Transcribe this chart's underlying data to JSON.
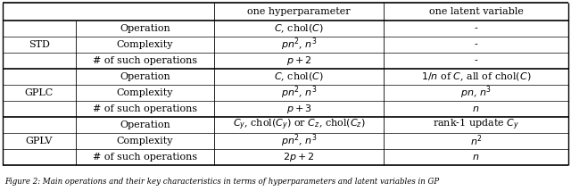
{
  "figsize": [
    6.4,
    2.14
  ],
  "dpi": 100,
  "header_row": [
    "",
    "one hyperparameter",
    "one latent variable"
  ],
  "row_groups": [
    {
      "group": "STD",
      "rows": [
        [
          "Operation",
          "$C$, chol$(C)$",
          "-"
        ],
        [
          "Complexity",
          "$pn^2$, $n^3$",
          "-"
        ],
        [
          "# of such operations",
          "$p+2$",
          "-"
        ]
      ]
    },
    {
      "group": "GPLC",
      "rows": [
        [
          "Operation",
          "$C$, chol$(C)$",
          "$1/n$ of $C$, all of chol$(C)$"
        ],
        [
          "Complexity",
          "$pn^2$, $n^3$",
          "$pn$, $n^3$"
        ],
        [
          "# of such operations",
          "$p+3$",
          "$n$"
        ]
      ]
    },
    {
      "group": "GPLV",
      "rows": [
        [
          "Operation",
          "$C_y$, chol$(C_y)$ or $C_z$, chol$(C_z)$",
          "rank-1 update $C_y$"
        ],
        [
          "Complexity",
          "$pn^2$, $n^3$",
          "$n^2$"
        ],
        [
          "# of such operations",
          "$2p+2$",
          "$n$"
        ]
      ]
    }
  ],
  "caption": "Figure 2: Main operations and their key characteristics in terms of hyperparameters and latent variables in GP",
  "background_color": "#ffffff",
  "text_color": "#000000",
  "fontsize": 8.0
}
